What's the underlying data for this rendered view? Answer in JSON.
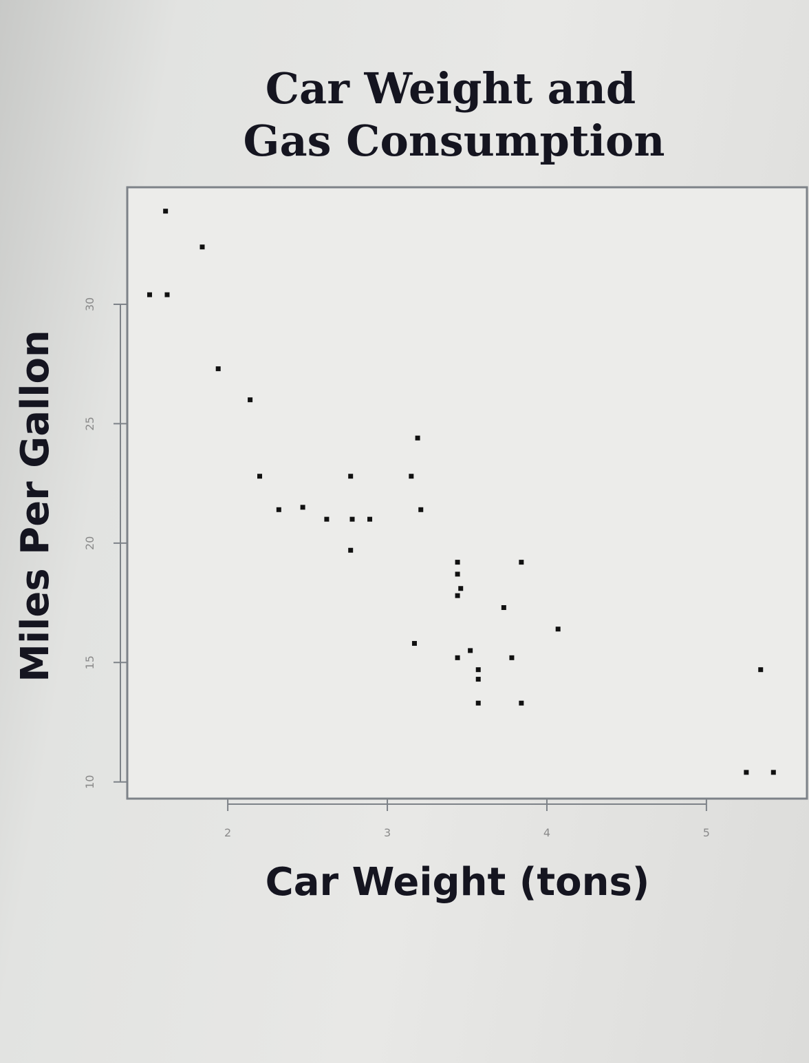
{
  "chart_data": {
    "type": "scatter",
    "title": [
      "Car Weight and",
      "Gas Consumption"
    ],
    "xlabel": "Car Weight (tons)",
    "ylabel": "Miles Per Gallon",
    "x_ticks": [
      2,
      3,
      4,
      5
    ],
    "y_ticks": [
      10,
      15,
      20,
      25,
      30
    ],
    "xlim": [
      1.37,
      5.63
    ],
    "ylim": [
      9.3,
      34.9
    ],
    "grid": false,
    "legend": "none",
    "colors": {
      "point": "#111111",
      "frame": "#7d8288",
      "plot_bg": "#ececea"
    },
    "points": [
      {
        "x": 1.61,
        "y": 33.9
      },
      {
        "x": 1.84,
        "y": 32.4
      },
      {
        "x": 1.51,
        "y": 30.4
      },
      {
        "x": 1.62,
        "y": 30.4
      },
      {
        "x": 1.94,
        "y": 27.3
      },
      {
        "x": 2.14,
        "y": 26.0
      },
      {
        "x": 2.2,
        "y": 22.8
      },
      {
        "x": 2.32,
        "y": 21.4
      },
      {
        "x": 2.47,
        "y": 21.5
      },
      {
        "x": 2.62,
        "y": 21.0
      },
      {
        "x": 2.77,
        "y": 22.8
      },
      {
        "x": 2.77,
        "y": 19.7
      },
      {
        "x": 2.78,
        "y": 21.0
      },
      {
        "x": 2.89,
        "y": 21.0
      },
      {
        "x": 3.15,
        "y": 22.8
      },
      {
        "x": 3.19,
        "y": 24.4
      },
      {
        "x": 3.21,
        "y": 21.4
      },
      {
        "x": 3.17,
        "y": 15.8
      },
      {
        "x": 3.44,
        "y": 19.2
      },
      {
        "x": 3.44,
        "y": 18.7
      },
      {
        "x": 3.44,
        "y": 17.8
      },
      {
        "x": 3.46,
        "y": 18.1
      },
      {
        "x": 3.44,
        "y": 15.2
      },
      {
        "x": 3.52,
        "y": 15.5
      },
      {
        "x": 3.57,
        "y": 14.3
      },
      {
        "x": 3.57,
        "y": 14.7
      },
      {
        "x": 3.57,
        "y": 13.3
      },
      {
        "x": 3.73,
        "y": 17.3
      },
      {
        "x": 3.78,
        "y": 15.2
      },
      {
        "x": 3.84,
        "y": 19.2
      },
      {
        "x": 3.84,
        "y": 13.3
      },
      {
        "x": 4.07,
        "y": 16.4
      },
      {
        "x": 5.34,
        "y": 14.7
      },
      {
        "x": 5.25,
        "y": 10.4
      },
      {
        "x": 5.42,
        "y": 10.4
      }
    ]
  }
}
